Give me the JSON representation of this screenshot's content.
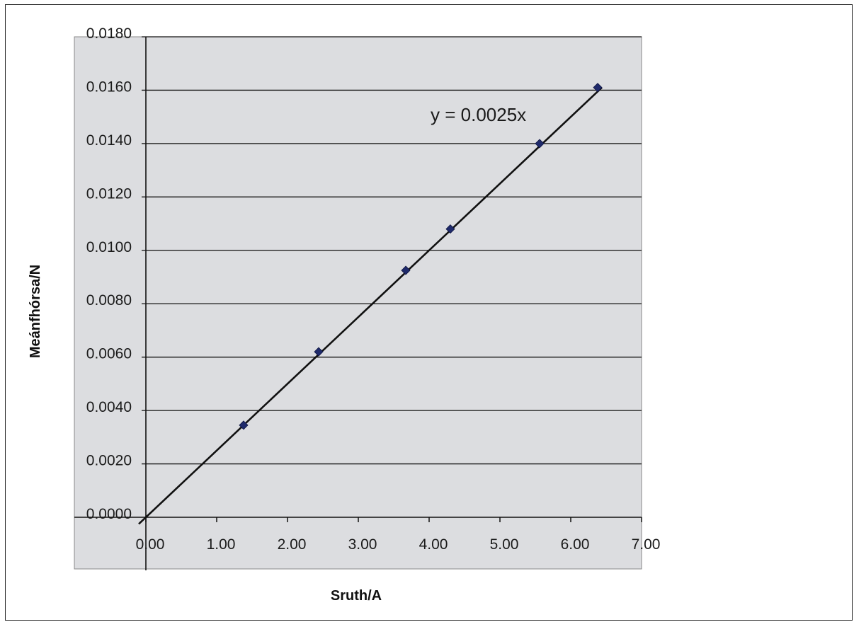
{
  "chart_data": {
    "type": "scatter",
    "title": "",
    "xlabel": "Sruth/A",
    "ylabel": "Meánfhórsa/N",
    "xlim": [
      0,
      7
    ],
    "ylim": [
      0,
      0.018
    ],
    "x_ticks": [
      "0.00",
      "1.00",
      "2.00",
      "3.00",
      "4.00",
      "5.00",
      "6.00",
      "7.00"
    ],
    "y_ticks": [
      "0.0000",
      "0.0020",
      "0.0040",
      "0.0060",
      "0.0080",
      "0.0100",
      "0.0120",
      "0.0140",
      "0.0160",
      "0.0180"
    ],
    "grid": "horizontal",
    "legend": "none",
    "series": [
      {
        "x": [
          1.38,
          2.44,
          3.67,
          4.3,
          5.56,
          6.38
        ],
        "y": [
          0.00345,
          0.0062,
          0.00925,
          0.0108,
          0.014,
          0.0161
        ],
        "marker": "diamond",
        "color": "#1f2a6b"
      }
    ],
    "trendline": {
      "slope": 0.0025,
      "intercept": 0,
      "x_range": [
        -0.1,
        6.44
      ],
      "color": "#111111",
      "label": "y = 0.0025x"
    },
    "colors": {
      "plot_background": "#dcdde0",
      "gridline": "#111111"
    }
  }
}
